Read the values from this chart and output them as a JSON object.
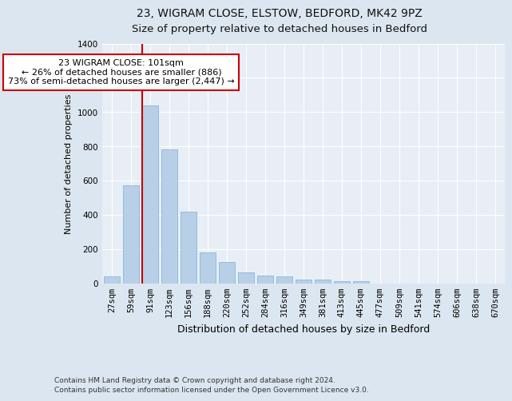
{
  "title": "23, WIGRAM CLOSE, ELSTOW, BEDFORD, MK42 9PZ",
  "subtitle": "Size of property relative to detached houses in Bedford",
  "xlabel": "Distribution of detached houses by size in Bedford",
  "ylabel": "Number of detached properties",
  "categories": [
    "27sqm",
    "59sqm",
    "91sqm",
    "123sqm",
    "156sqm",
    "188sqm",
    "220sqm",
    "252sqm",
    "284sqm",
    "316sqm",
    "349sqm",
    "381sqm",
    "413sqm",
    "445sqm",
    "477sqm",
    "509sqm",
    "541sqm",
    "574sqm",
    "606sqm",
    "638sqm",
    "670sqm"
  ],
  "values": [
    40,
    570,
    1040,
    780,
    420,
    180,
    125,
    65,
    45,
    42,
    20,
    20,
    10,
    10,
    0,
    0,
    0,
    0,
    0,
    0,
    0
  ],
  "bar_color": "#b8cfe8",
  "bar_edge_color": "#7aafd4",
  "vline_color": "#cc0000",
  "annotation_text": "23 WIGRAM CLOSE: 101sqm\n← 26% of detached houses are smaller (886)\n73% of semi-detached houses are larger (2,447) →",
  "annotation_box_color": "#ffffff",
  "annotation_box_edge": "#cc0000",
  "ylim": [
    0,
    1400
  ],
  "yticks": [
    0,
    200,
    400,
    600,
    800,
    1000,
    1200,
    1400
  ],
  "bg_color": "#dce6f0",
  "plot_bg_color": "#e8eef6",
  "footer": "Contains HM Land Registry data © Crown copyright and database right 2024.\nContains public sector information licensed under the Open Government Licence v3.0.",
  "title_fontsize": 10,
  "xlabel_fontsize": 9,
  "ylabel_fontsize": 8,
  "tick_fontsize": 7.5,
  "annot_fontsize": 8,
  "footer_fontsize": 6.5
}
